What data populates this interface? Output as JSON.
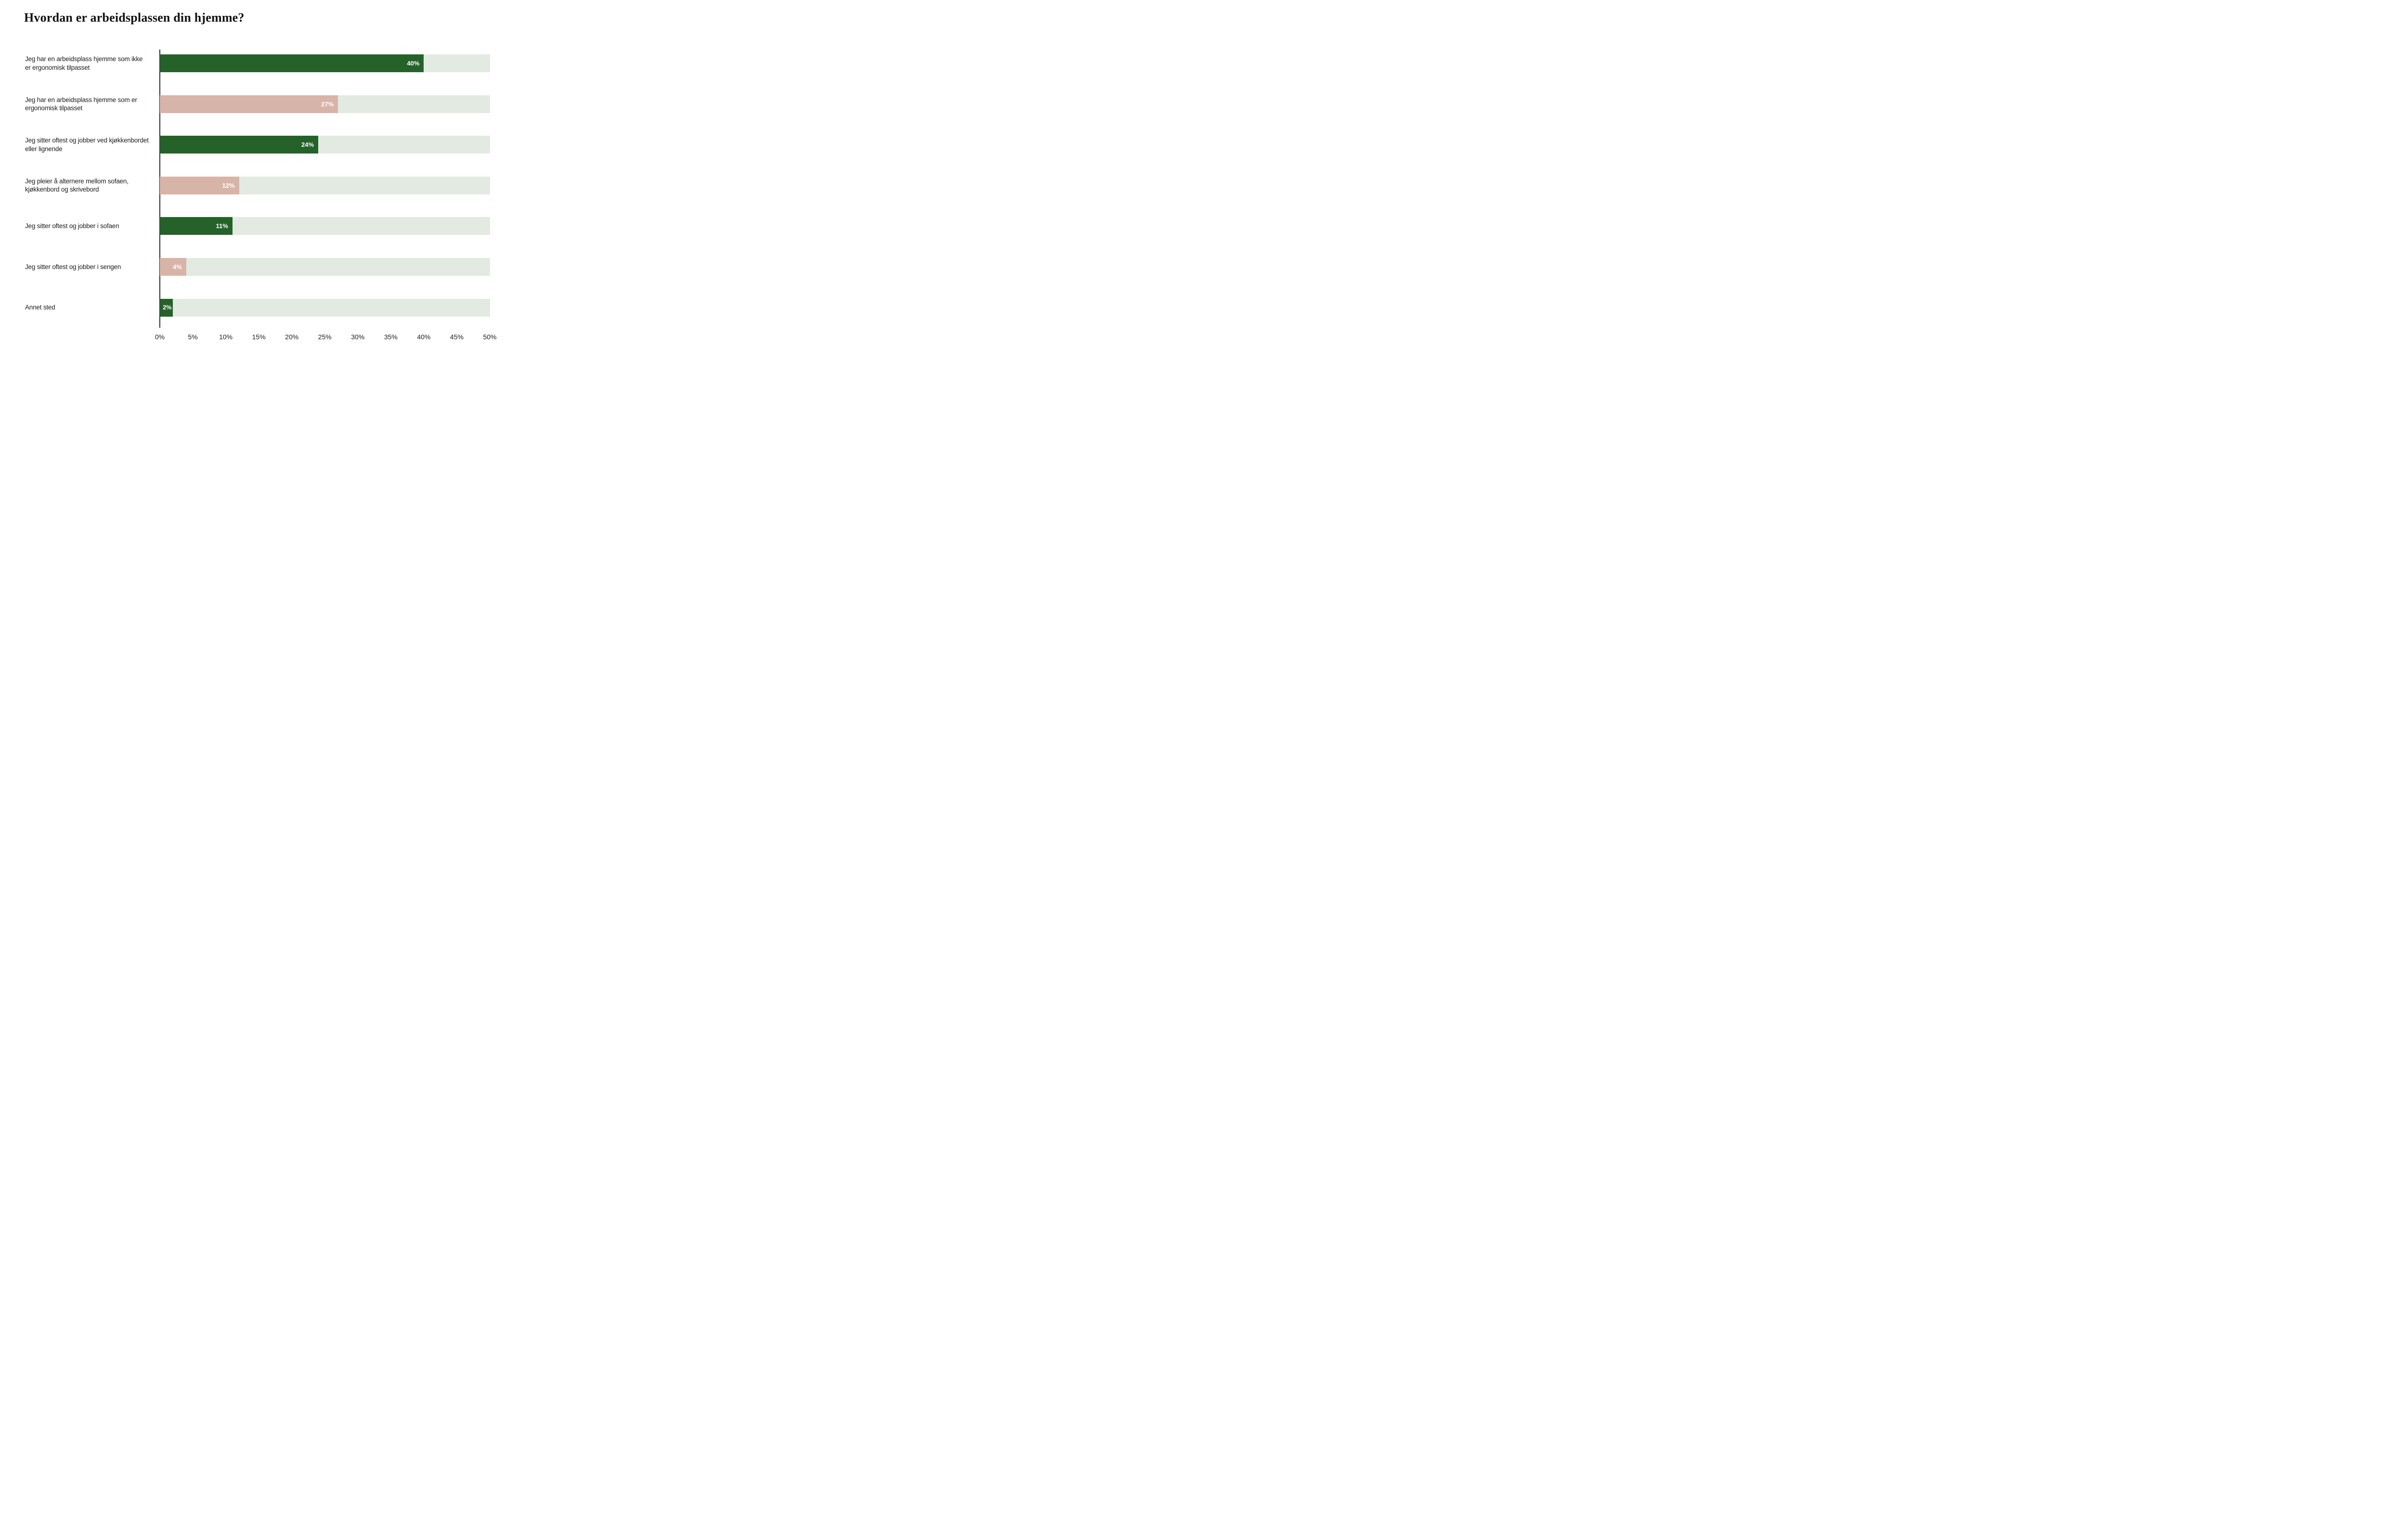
{
  "title": "Hvordan er arbeidsplassen din hjemme?",
  "colors": {
    "bar_green": "#25622A",
    "bar_pink": "#D8B4A8",
    "track": "#E2EAE1",
    "axis": "#2B2B2B",
    "value_text": "#FFFFFF"
  },
  "chart_data": {
    "type": "bar",
    "orientation": "horizontal",
    "title": "Hvordan er arbeidsplassen din hjemme?",
    "categories": [
      "Jeg har en arbeidsplass hjemme som ikke\ner ergonomisk tilpasset",
      "Jeg har en arbeidsplass hjemme som er\nergonomisk tilpasset",
      "Jeg sitter oftest og jobber ved kjøkkenbordet\neller lignende",
      "Jeg pleier å alternere mellom sofaen,\nkjøkkenbord og skrivebord",
      "Jeg sitter oftest og jobber i sofaen",
      "Jeg sitter oftest og jobber i sengen",
      "Annet sted"
    ],
    "values": [
      40,
      27,
      24,
      12,
      11,
      4,
      2
    ],
    "value_labels": [
      "40%",
      "27%",
      "24%",
      "12%",
      "11%",
      "4%",
      "2%"
    ],
    "bar_colors": [
      "green",
      "pink",
      "green",
      "pink",
      "green",
      "pink",
      "green"
    ],
    "xlabel": "",
    "ylabel": "",
    "xlim": [
      0,
      50
    ],
    "x_ticks": [
      "0%",
      "5%",
      "10%",
      "15%",
      "20%",
      "25%",
      "30%",
      "35%",
      "40%",
      "45%",
      "50%"
    ],
    "grid": false,
    "legend": false,
    "value_label_position": "inside-end"
  }
}
